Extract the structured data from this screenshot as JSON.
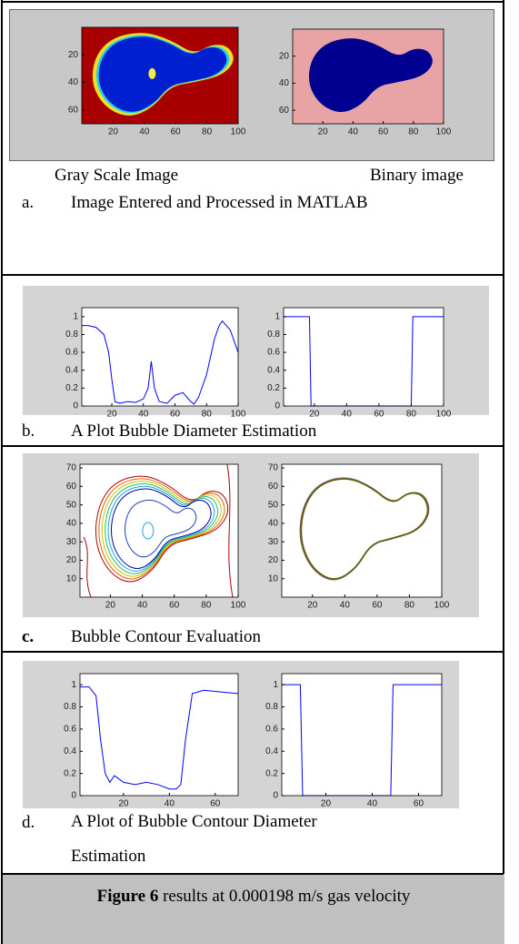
{
  "panels": [
    {
      "label": "a.",
      "caption": "Image Entered and Processed in MATLAB",
      "plot_captions": [
        "Gray Scale Image",
        "Binary image"
      ],
      "plots": [
        {
          "type": "image",
          "xlim": [
            0,
            100
          ],
          "ylim": [
            0,
            70
          ],
          "y_reversed": true,
          "xticks": [
            20,
            40,
            60,
            80,
            100
          ],
          "yticks": [
            20,
            40,
            60
          ],
          "background": "#a80000",
          "color": "#0020d0"
        },
        {
          "type": "image",
          "xlim": [
            0,
            100
          ],
          "ylim": [
            0,
            70
          ],
          "y_reversed": true,
          "xticks": [
            20,
            40,
            60,
            80,
            100
          ],
          "yticks": [
            20,
            40,
            60
          ],
          "background": "#e8a4a4",
          "color": "#000090"
        }
      ]
    },
    {
      "label": "b.",
      "caption": "A Plot Bubble Diameter Estimation",
      "plots": [
        {
          "type": "line",
          "xlim": [
            1,
            100
          ],
          "ylim": [
            0,
            1.1
          ],
          "xticks": [
            20,
            40,
            60,
            80,
            100
          ],
          "yticks": [
            0,
            0.2,
            0.4,
            0.6,
            0.8,
            1
          ],
          "series": [
            {
              "color": "#0000ff",
              "x": [
                1,
                5,
                10,
                15,
                18,
                20,
                22,
                25,
                30,
                35,
                40,
                43,
                45,
                47,
                50,
                55,
                60,
                65,
                70,
                72,
                75,
                80,
                85,
                88,
                90,
                95,
                98,
                100
              ],
              "values": [
                0.9,
                0.9,
                0.88,
                0.8,
                0.6,
                0.3,
                0.05,
                0.03,
                0.05,
                0.04,
                0.08,
                0.2,
                0.5,
                0.2,
                0.05,
                0.03,
                0.12,
                0.15,
                0.05,
                0.02,
                0.1,
                0.35,
                0.75,
                0.9,
                0.95,
                0.85,
                0.7,
                0.6
              ]
            }
          ]
        },
        {
          "type": "line",
          "xlim": [
            1,
            100
          ],
          "ylim": [
            0,
            1.1
          ],
          "xticks": [
            20,
            40,
            60,
            80,
            100
          ],
          "yticks": [
            0,
            0.2,
            0.4,
            0.6,
            0.8,
            1
          ],
          "series": [
            {
              "color": "#0000ff",
              "x": [
                1,
                17,
                18,
                80,
                81,
                100
              ],
              "values": [
                1,
                1,
                0,
                0,
                1,
                1
              ]
            }
          ]
        }
      ]
    },
    {
      "label": "c.",
      "caption": "Bubble Contour Evaluation",
      "plots": [
        {
          "type": "contour",
          "filled": true,
          "xlim": [
            1,
            100
          ],
          "ylim": [
            0,
            72
          ],
          "xticks": [
            20,
            40,
            60,
            80,
            100
          ],
          "yticks": [
            10,
            20,
            30,
            40,
            50,
            60,
            70
          ]
        },
        {
          "type": "contour",
          "filled": false,
          "xlim": [
            1,
            100
          ],
          "ylim": [
            0,
            72
          ],
          "xticks": [
            20,
            40,
            60,
            80,
            100
          ],
          "yticks": [
            10,
            20,
            30,
            40,
            50,
            60,
            70
          ]
        }
      ]
    },
    {
      "label": "d.",
      "caption": "A Plot of Bubble Contour Diameter Estimation",
      "plots": [
        {
          "type": "line",
          "xlim": [
            1,
            70
          ],
          "ylim": [
            0,
            1.1
          ],
          "xticks": [
            20,
            40,
            60
          ],
          "yticks": [
            0,
            0.2,
            0.4,
            0.6,
            0.8,
            1
          ],
          "series": [
            {
              "color": "#0000ff",
              "x": [
                1,
                5,
                8,
                10,
                12,
                14,
                16,
                20,
                25,
                30,
                35,
                40,
                43,
                45,
                47,
                50,
                55,
                60,
                65,
                70
              ],
              "values": [
                0.98,
                0.98,
                0.9,
                0.5,
                0.2,
                0.12,
                0.18,
                0.12,
                0.1,
                0.12,
                0.1,
                0.06,
                0.06,
                0.1,
                0.5,
                0.92,
                0.95,
                0.94,
                0.93,
                0.92
              ]
            }
          ]
        },
        {
          "type": "line",
          "xlim": [
            1,
            70
          ],
          "ylim": [
            0,
            1.1
          ],
          "xticks": [
            20,
            40,
            60
          ],
          "yticks": [
            0,
            0.2,
            0.4,
            0.6,
            0.8,
            1
          ],
          "series": [
            {
              "color": "#0000ff",
              "x": [
                1,
                9,
                10,
                48,
                49,
                70
              ],
              "values": [
                1,
                1,
                0,
                0,
                1,
                1
              ]
            }
          ]
        }
      ]
    }
  ],
  "figure_caption": {
    "label": "Figure 6",
    "text": "results at 0.000198 m/s gas velocity"
  }
}
